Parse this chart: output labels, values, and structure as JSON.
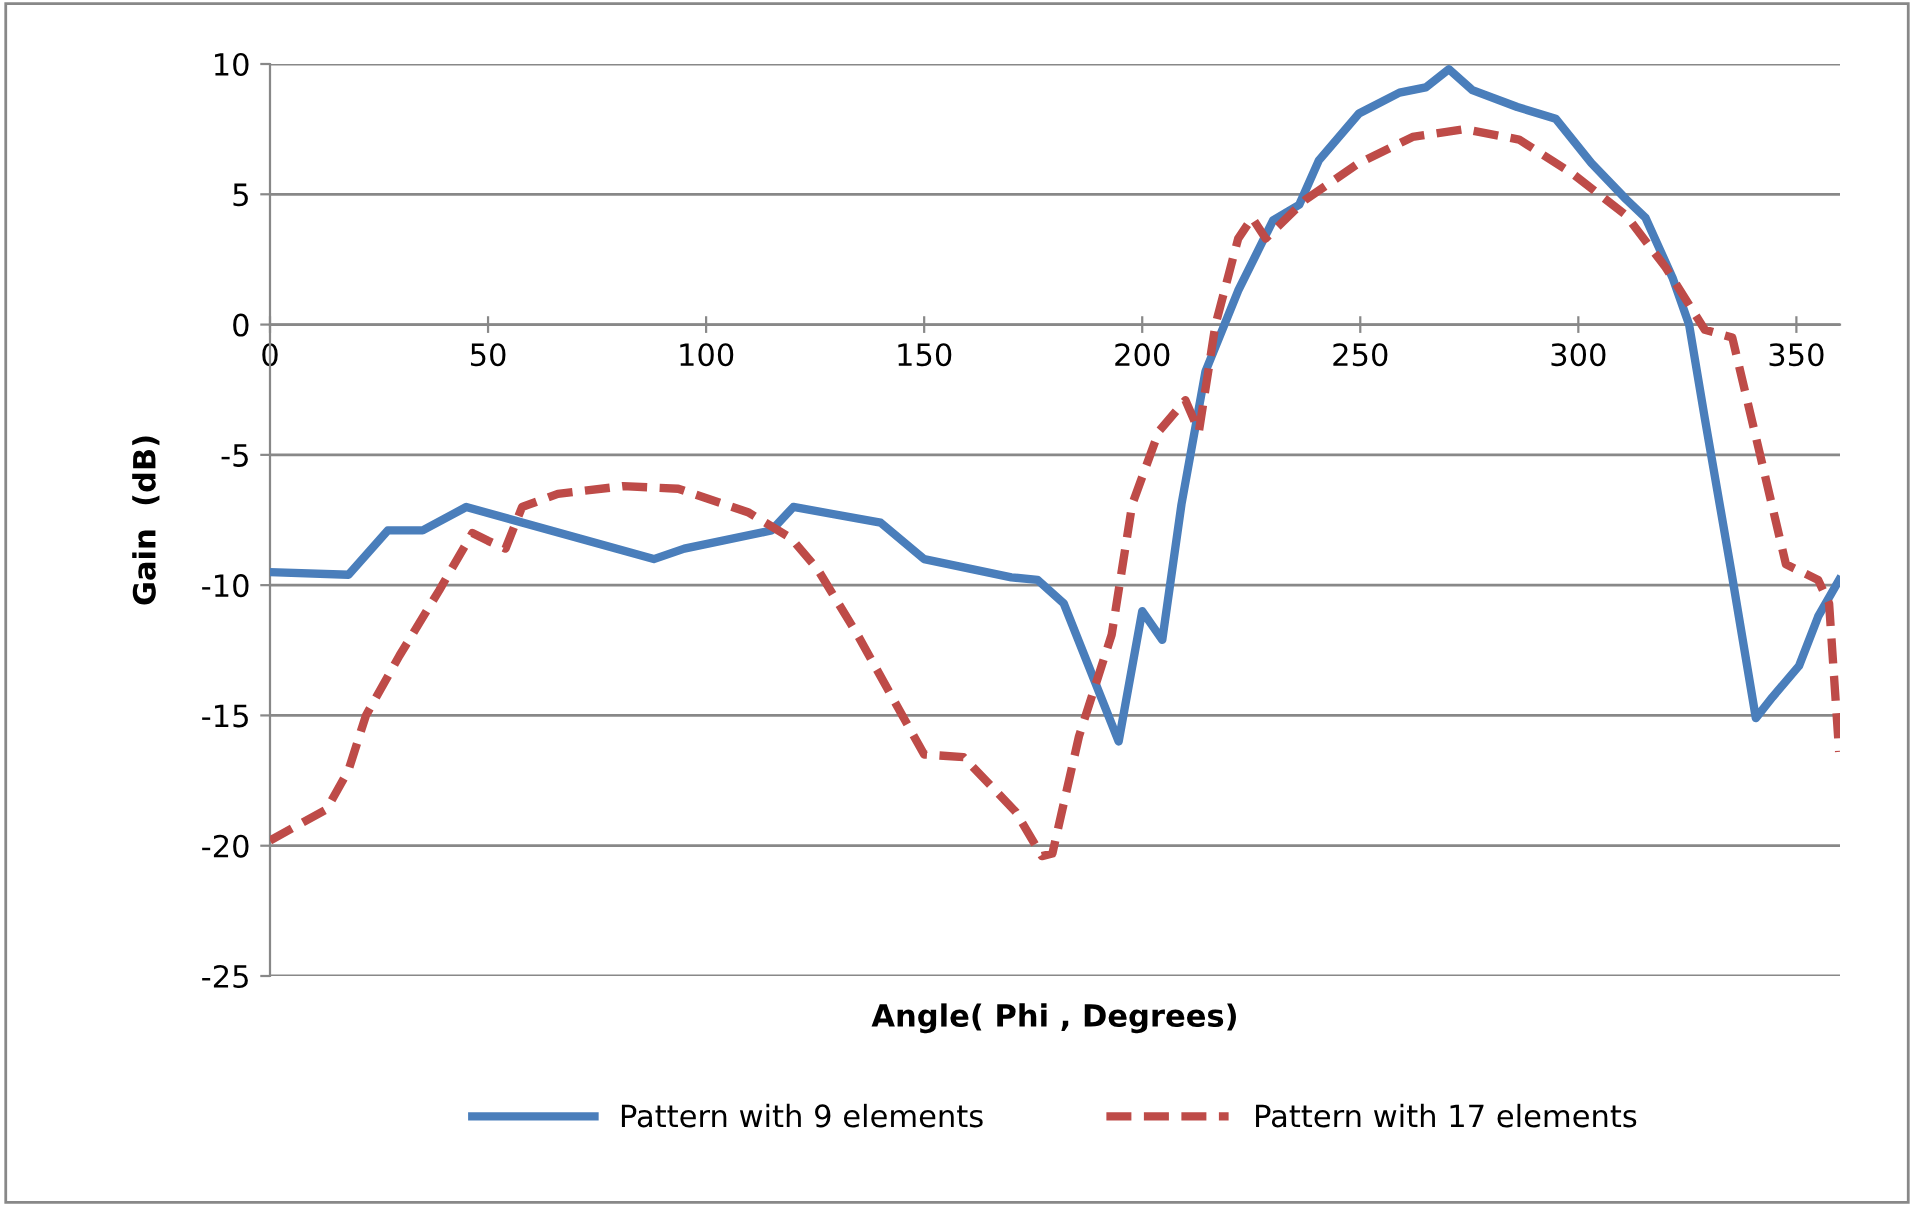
{
  "chart_data": {
    "type": "line",
    "xlabel": "Angle( Phi , Degrees)",
    "ylabel": "Gain  (dB)",
    "xlim": [
      0,
      360
    ],
    "xticks": [
      0,
      50,
      100,
      150,
      200,
      250,
      300,
      350
    ],
    "ylim": [
      -25,
      10
    ],
    "yticks": [
      -25,
      -20,
      -15,
      -10,
      -5,
      0,
      5,
      10
    ],
    "grid": "y",
    "legend": "bottom",
    "marker": "none",
    "series": [
      {
        "name": "Pattern with 9 elements",
        "color": "#4a7ebb",
        "line_style": "solid",
        "x": [
          0,
          18,
          27,
          35,
          45,
          88,
          95,
          115,
          120,
          140,
          150,
          170,
          176,
          182,
          194.6,
          200,
          204.6,
          209,
          214.5,
          222,
          230,
          236,
          240.5,
          249.7,
          259,
          265,
          270.3,
          275.7,
          286,
          294.8,
          303,
          311,
          315.4,
          321.6,
          325.4,
          329,
          335,
          340.7,
          344.5,
          350.6,
          355,
          359.8
        ],
        "values": [
          -9.5,
          -9.6,
          -7.9,
          -7.9,
          -7.0,
          -9.0,
          -8.6,
          -7.9,
          -7.0,
          -7.6,
          -9.0,
          -9.7,
          -9.8,
          -10.7,
          -16.0,
          -11.0,
          -12.1,
          -6.9,
          -1.8,
          1.3,
          4.0,
          4.6,
          6.3,
          8.1,
          8.9,
          9.1,
          9.8,
          9.0,
          8.35,
          7.9,
          6.2,
          4.8,
          4.1,
          1.8,
          0.0,
          -3.6,
          -9.4,
          -15.1,
          -14.3,
          -13.1,
          -11.2,
          -9.8
        ]
      },
      {
        "name": "Pattern with 17 elements",
        "color": "#be4b48",
        "line_style": "dashed",
        "x": [
          0,
          13,
          18,
          22,
          29.7,
          38.8,
          46.4,
          50,
          54,
          57.8,
          66,
          81,
          93.6,
          109.6,
          119.5,
          125.6,
          134.7,
          145,
          150,
          159,
          171,
          177,
          179.4,
          185.5,
          193,
          197.7,
          203.8,
          209.9,
          213,
          216.8,
          222,
          225.2,
          228.3,
          237.5,
          249.7,
          262,
          274,
          286.4,
          298.6,
          310.9,
          320,
          329,
          335.3,
          341.4,
          347.6,
          355,
          357.5,
          359.8
        ],
        "values": [
          -19.8,
          -18.6,
          -17.1,
          -15.0,
          -12.7,
          -10.2,
          -8.0,
          -8.3,
          -8.6,
          -7.0,
          -6.5,
          -6.2,
          -6.3,
          -7.2,
          -8.2,
          -9.4,
          -11.9,
          -15.0,
          -16.5,
          -16.6,
          -18.7,
          -20.4,
          -20.3,
          -15.8,
          -11.9,
          -6.9,
          -4.1,
          -2.9,
          -4.1,
          0.0,
          3.3,
          4.1,
          3.3,
          4.8,
          6.2,
          7.2,
          7.5,
          7.1,
          5.8,
          4.2,
          2.2,
          -0.2,
          -0.5,
          -4.8,
          -9.2,
          -9.8,
          -10.7,
          -16.4
        ]
      }
    ]
  }
}
